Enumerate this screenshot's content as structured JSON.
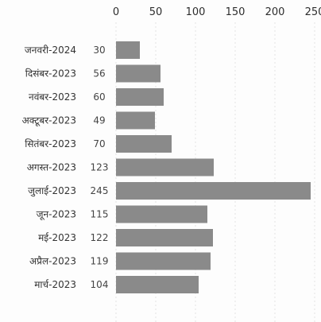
{
  "chart_data": {
    "type": "bar",
    "orientation": "horizontal",
    "categories": [
      "जनवरी-2024",
      "दिसंबर-2023",
      "नवंबर-2023",
      "अक्टूबर-2023",
      "सितंबर-2023",
      "अगस्त-2023",
      "जुलाई-2023",
      "जून-2023",
      "मई-2023",
      "अप्रैल-2023",
      "मार्च-2023"
    ],
    "values": [
      30,
      56,
      60,
      49,
      70,
      123,
      245,
      115,
      122,
      119,
      104
    ],
    "value_labels": [
      "30",
      "56",
      "60",
      "49",
      "70",
      "123",
      "245",
      "115",
      "122",
      "119",
      "104"
    ],
    "xlim": [
      0,
      250
    ],
    "x_ticks": [
      "0",
      "50",
      "100",
      "150",
      "200",
      "250"
    ],
    "x_axis_position": "top",
    "grid": true,
    "legend": "none",
    "title": "",
    "xlabel": "",
    "ylabel": "",
    "colors": {
      "bar": "#8a8a8a",
      "grid": "#e3e3e3",
      "text": "#2d2d2d"
    }
  }
}
